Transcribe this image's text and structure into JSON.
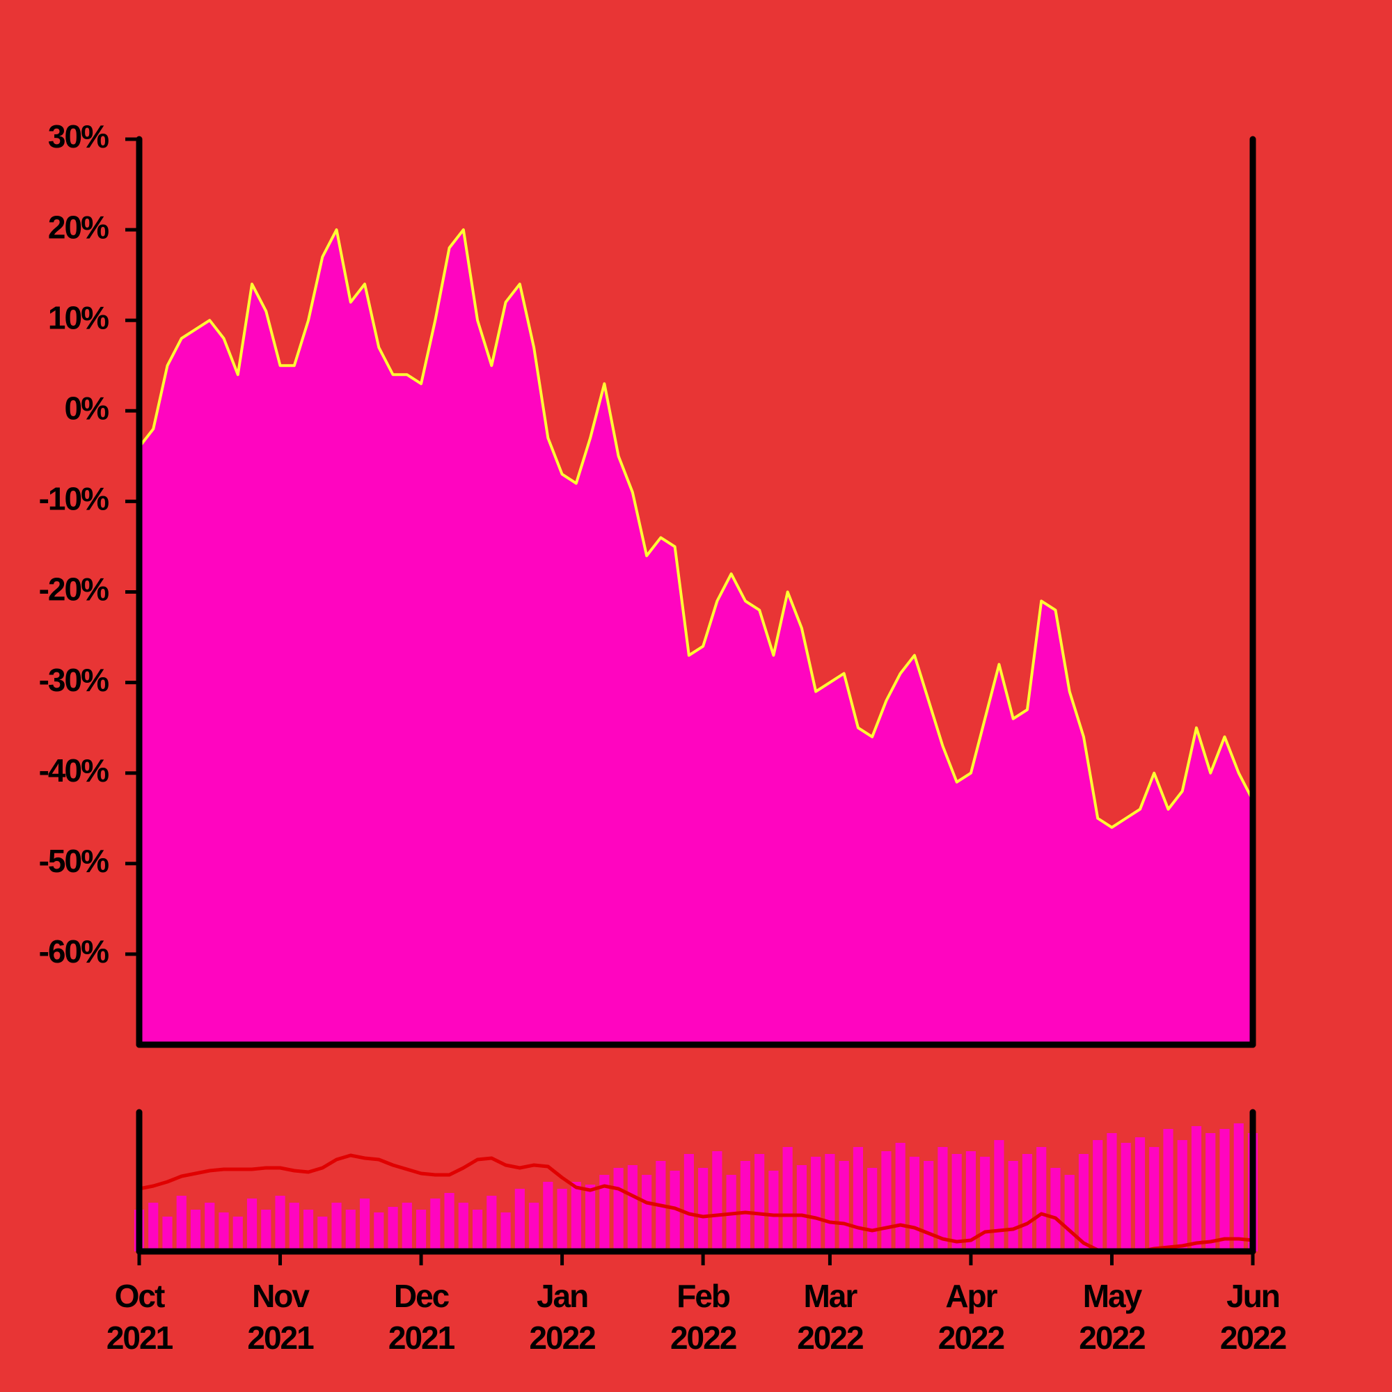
{
  "chart_data": {
    "type": "area",
    "categories": [
      "Oct 2021",
      null,
      null,
      null,
      null,
      null,
      null,
      null,
      null,
      null,
      "Nov 2021",
      null,
      null,
      null,
      null,
      null,
      null,
      null,
      null,
      null,
      "Dec 2021",
      null,
      null,
      null,
      null,
      null,
      null,
      null,
      null,
      null,
      "Jan 2022",
      null,
      null,
      null,
      null,
      null,
      null,
      null,
      null,
      null,
      "Feb 2022",
      null,
      null,
      null,
      null,
      null,
      null,
      null,
      null,
      "Mar 2022",
      null,
      null,
      null,
      null,
      null,
      null,
      null,
      null,
      null,
      "Apr 2022",
      null,
      null,
      null,
      null,
      null,
      null,
      null,
      null,
      null,
      "May 2022",
      null,
      null,
      null,
      null,
      null,
      null,
      null,
      null,
      null,
      "Jun 2022"
    ],
    "values": [
      -4,
      -2,
      5,
      8,
      9,
      10,
      8,
      4,
      14,
      11,
      5,
      5,
      10,
      17,
      20,
      12,
      14,
      7,
      4,
      4,
      3,
      10,
      18,
      20,
      10,
      5,
      12,
      14,
      7,
      -3,
      -7,
      -8,
      -3,
      3,
      -5,
      -9,
      -16,
      -14,
      -15,
      -27,
      -26,
      -21,
      -18,
      -21,
      -22,
      -27,
      -20,
      -24,
      -31,
      -30,
      -29,
      -35,
      -36,
      -32,
      -29,
      -27,
      -32,
      -37,
      -41,
      -40,
      -34,
      -28,
      -34,
      -33,
      -21,
      -22,
      -31,
      -36,
      -45,
      -46,
      -45,
      -44,
      -40,
      -44,
      -42,
      -35,
      -40,
      -36,
      -40,
      -43
    ],
    "color": "#ff05c0",
    "line_color": "#ffff33",
    "ylim": [
      -70,
      30
    ],
    "yticks": [
      {
        "value": 30,
        "label": "30%"
      },
      {
        "value": 20,
        "label": "20%"
      },
      {
        "value": 10,
        "label": "10%"
      },
      {
        "value": 0,
        "label": "0%"
      },
      {
        "value": -10,
        "label": "-10%"
      },
      {
        "value": -20,
        "label": "-20%"
      },
      {
        "value": -30,
        "label": "-30%"
      },
      {
        "value": -40,
        "label": "-40%"
      },
      {
        "value": -50,
        "label": "-50%"
      },
      {
        "value": -60,
        "label": "-60%"
      }
    ],
    "volume": {
      "ylim": [
        0,
        100
      ],
      "color": "#ff05c0",
      "values": [
        30,
        35,
        25,
        40,
        30,
        35,
        28,
        25,
        38,
        30,
        40,
        35,
        30,
        25,
        35,
        30,
        38,
        28,
        32,
        35,
        30,
        38,
        42,
        35,
        30,
        40,
        28,
        45,
        35,
        50,
        45,
        50,
        48,
        55,
        60,
        62,
        55,
        65,
        58,
        70,
        60,
        72,
        55,
        65,
        70,
        58,
        75,
        62,
        68,
        70,
        65,
        75,
        60,
        72,
        78,
        68,
        65,
        75,
        70,
        72,
        68,
        80,
        65,
        70,
        75,
        60,
        55,
        70,
        80,
        85,
        78,
        82,
        75,
        88,
        80,
        90,
        85,
        88,
        92,
        85
      ]
    },
    "moving_average": {
      "color": "#e00000",
      "values": [
        45,
        47,
        50,
        54,
        56,
        58,
        59,
        59,
        59,
        60,
        60,
        58,
        57,
        60,
        66,
        69,
        67,
        66,
        62,
        59,
        56,
        55,
        55,
        60,
        66,
        67,
        62,
        60,
        62,
        61,
        53,
        46,
        44,
        47,
        45,
        40,
        35,
        33,
        31,
        27,
        25,
        26,
        27,
        28,
        27,
        26,
        26,
        26,
        24,
        21,
        20,
        17,
        15,
        17,
        19,
        17,
        13,
        9,
        7,
        8,
        14,
        15,
        16,
        20,
        27,
        24,
        15,
        6,
        1,
        0,
        0,
        0,
        2,
        3,
        4,
        6,
        7,
        9,
        9,
        8
      ]
    }
  }
}
